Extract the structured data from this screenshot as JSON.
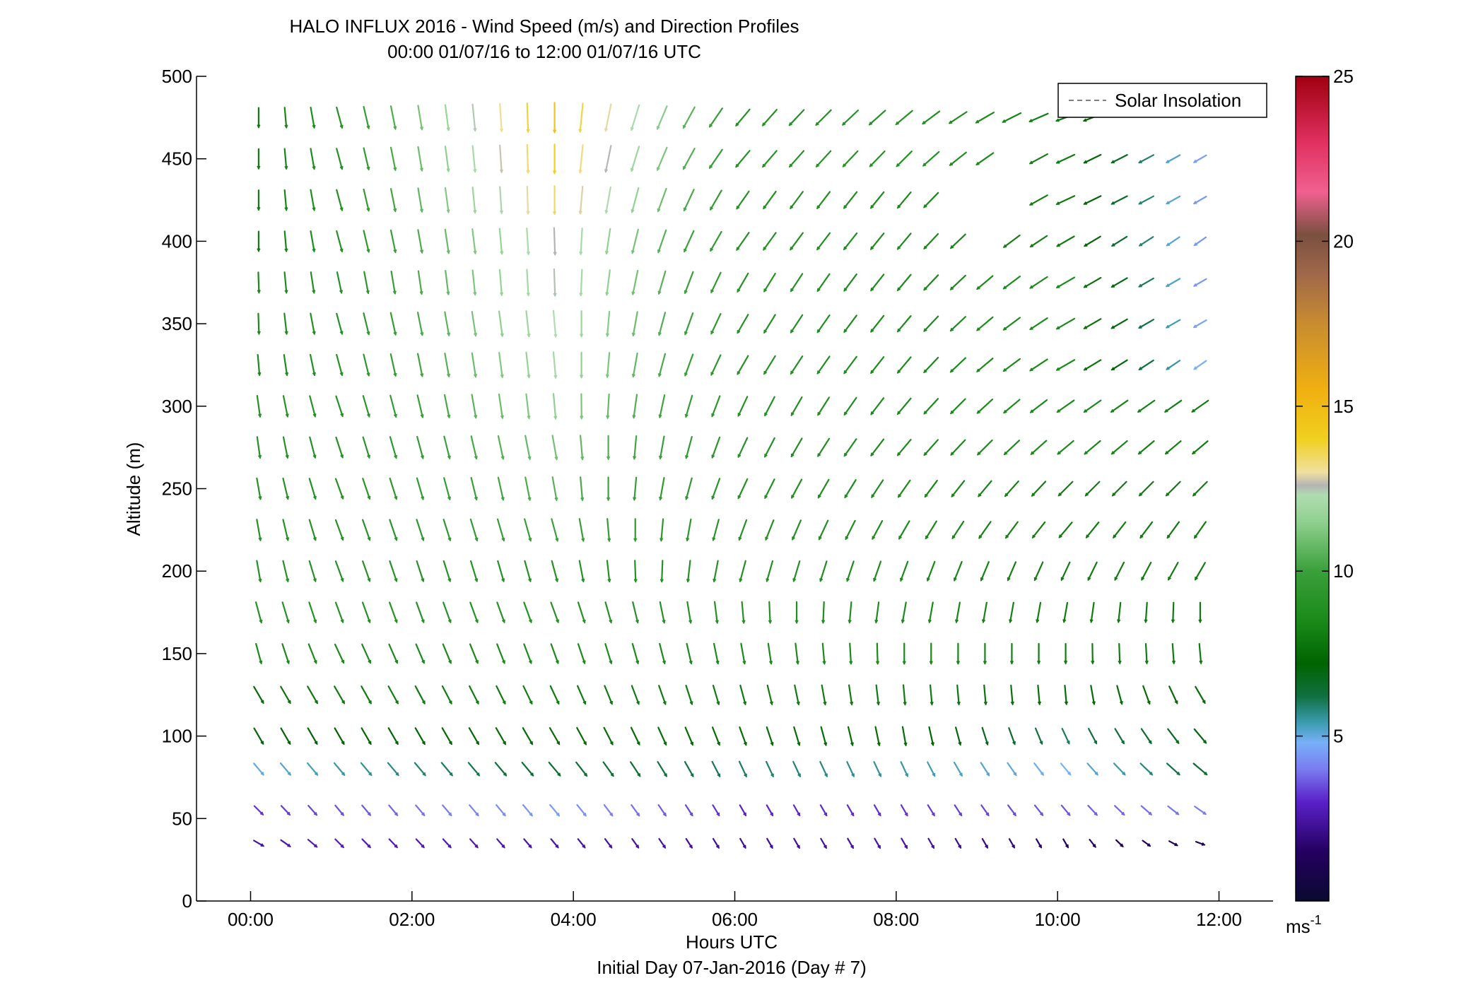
{
  "chart_data": {
    "type": "quiver",
    "title": "HALO INFLUX 2016 - Wind Speed (m/s) and Direction Profiles",
    "subtitle": "00:00 01/07/16 to 12:00 01/07/16  UTC",
    "xlabel": "Hours UTC",
    "xlabel2": "Initial Day 07-Jan-2016 (Day # 7)",
    "ylabel": "Altitude (m)",
    "xlim": [
      -0.67,
      12.67
    ],
    "ylim": [
      0,
      500
    ],
    "xticks": [
      0,
      2,
      4,
      6,
      8,
      10,
      12
    ],
    "xtick_labels": [
      "00:00",
      "02:00",
      "04:00",
      "06:00",
      "08:00",
      "10:00",
      "12:00"
    ],
    "yticks": [
      0,
      50,
      100,
      150,
      200,
      250,
      300,
      350,
      400,
      450,
      500
    ],
    "ytick_labels": [
      "0",
      "50",
      "100",
      "150",
      "200",
      "250",
      "300",
      "350",
      "400",
      "450",
      "500"
    ],
    "legend": {
      "label": "Solar Insolation",
      "placement": "top-right",
      "line_color": "#808080"
    },
    "colorbar": {
      "vmin": 0,
      "vmax": 25,
      "ticks": [
        5,
        10,
        15,
        20,
        25
      ],
      "tick_labels": [
        "5",
        "10",
        "15",
        "20",
        "25"
      ],
      "unit": "ms",
      "unit_exp": "-1",
      "stops": [
        {
          "v": 0,
          "c": "#0a0a30"
        },
        {
          "v": 1.5,
          "c": "#240060"
        },
        {
          "v": 3.0,
          "c": "#5a20c8"
        },
        {
          "v": 4.0,
          "c": "#7a7cf0"
        },
        {
          "v": 4.8,
          "c": "#78b0f8"
        },
        {
          "v": 5.4,
          "c": "#3c9cb0"
        },
        {
          "v": 6.2,
          "c": "#107040"
        },
        {
          "v": 7.2,
          "c": "#006400"
        },
        {
          "v": 8.5,
          "c": "#1a8a1a"
        },
        {
          "v": 10.0,
          "c": "#3aa03a"
        },
        {
          "v": 11.5,
          "c": "#90d090"
        },
        {
          "v": 12.3,
          "c": "#b0dcb0"
        },
        {
          "v": 12.6,
          "c": "#b4b4b4"
        },
        {
          "v": 13.0,
          "c": "#f0e0a0"
        },
        {
          "v": 14.0,
          "c": "#f0d020"
        },
        {
          "v": 15.5,
          "c": "#f0b010"
        },
        {
          "v": 17.5,
          "c": "#c88c30"
        },
        {
          "v": 19.0,
          "c": "#a0684a"
        },
        {
          "v": 20.2,
          "c": "#7a5040"
        },
        {
          "v": 21.5,
          "c": "#f06090"
        },
        {
          "v": 23.0,
          "c": "#e03060"
        },
        {
          "v": 25.0,
          "c": "#a00010"
        }
      ]
    },
    "times_hours": [
      0.1,
      0.433,
      0.767,
      1.1,
      1.433,
      1.767,
      2.1,
      2.433,
      2.767,
      3.1,
      3.433,
      3.767,
      4.1,
      4.433,
      4.767,
      5.1,
      5.433,
      5.767,
      6.1,
      6.433,
      6.767,
      7.1,
      7.433,
      7.767,
      8.1,
      8.433,
      8.767,
      9.1,
      9.433,
      9.767,
      10.1,
      10.433,
      10.767,
      11.1,
      11.433,
      11.767
    ],
    "altitudes_m": [
      35,
      55,
      80,
      100,
      125,
      150,
      175,
      200,
      225,
      250,
      275,
      300,
      325,
      350,
      375,
      400,
      425,
      450,
      475
    ],
    "profiles_by_time": "direction_deg = meteorological direction wind blows FROM (0=N, 90=E); speed_ms",
    "profiles": [
      {
        "t": 0.1,
        "dir": [
          300,
          315,
          320,
          330,
          330,
          345,
          345,
          350,
          350,
          350,
          352,
          352,
          355,
          358,
          358,
          0,
          0,
          0,
          0
        ],
        "spd": [
          2.5,
          3.2,
          5.0,
          7.0,
          7.5,
          8.5,
          9.0,
          9.0,
          9.0,
          9.0,
          9.0,
          9.0,
          8.5,
          8.5,
          8.5,
          8.0,
          8.0,
          8.0,
          8.0
        ]
      },
      {
        "t": 1.1,
        "dir": [
          315,
          320,
          320,
          330,
          330,
          335,
          340,
          340,
          340,
          340,
          342,
          342,
          345,
          345,
          348,
          345,
          345,
          345,
          345
        ],
        "spd": [
          2.8,
          3.5,
          5.5,
          7.2,
          8.0,
          8.5,
          9.0,
          9.0,
          9.0,
          9.0,
          9.0,
          9.0,
          9.0,
          9.0,
          9.0,
          9.0,
          9.0,
          9.0,
          9.0
        ]
      },
      {
        "t": 3.767,
        "dir": [
          320,
          320,
          320,
          330,
          335,
          340,
          340,
          345,
          345,
          350,
          350,
          355,
          355,
          355,
          358,
          358,
          360,
          360,
          360
        ],
        "spd": [
          2.5,
          4.5,
          6.5,
          7.5,
          8.0,
          8.5,
          9.0,
          9.0,
          10.0,
          10.5,
          11.0,
          11.5,
          12.0,
          12.3,
          12.5,
          12.6,
          13.5,
          14.0,
          14.5
        ]
      },
      {
        "t": 6.1,
        "dir": [
          330,
          330,
          335,
          340,
          345,
          350,
          355,
          15,
          20,
          25,
          25,
          25,
          30,
          30,
          30,
          35,
          35,
          40,
          40
        ],
        "spd": [
          2.2,
          3.0,
          6.0,
          7.5,
          8.0,
          8.5,
          9.0,
          9.0,
          9.0,
          9.0,
          9.0,
          9.0,
          9.0,
          9.0,
          9.0,
          9.0,
          9.0,
          9.0,
          9.0
        ]
      },
      {
        "t": 8.1,
        "dir": [
          330,
          330,
          335,
          350,
          355,
          0,
          10,
          20,
          30,
          35,
          40,
          40,
          40,
          40,
          40,
          40,
          40,
          45,
          50
        ],
        "spd": [
          2.5,
          3.2,
          5.5,
          7.5,
          8.0,
          8.5,
          8.5,
          8.5,
          8.5,
          8.5,
          8.5,
          8.5,
          8.5,
          8.5,
          8.5,
          8.5,
          8.5,
          9.0,
          9.0
        ]
      },
      {
        "t": 10.1,
        "dir": [
          330,
          320,
          320,
          335,
          355,
          0,
          10,
          25,
          40,
          45,
          50,
          55,
          60,
          60,
          60,
          60,
          65,
          65,
          70
        ],
        "spd": [
          1.5,
          3.6,
          4.8,
          6.0,
          7.5,
          8.0,
          8.0,
          8.0,
          8.0,
          8.0,
          8.5,
          8.5,
          8.5,
          8.5,
          8.5,
          8.0,
          8.0,
          8.0,
          8.0
        ]
      },
      {
        "t": 11.767,
        "dir": [
          290,
          305,
          310,
          320,
          330,
          355,
          0,
          30,
          35,
          45,
          50,
          55,
          55,
          60,
          60,
          55,
          60,
          60,
          65
        ],
        "spd": [
          1.2,
          4.0,
          6.5,
          7.0,
          7.5,
          8.0,
          8.0,
          8.0,
          8.0,
          8.0,
          8.0,
          8.0,
          4.8,
          4.6,
          4.4,
          4.4,
          4.4,
          4.5,
          4.5
        ]
      }
    ],
    "missing": [
      {
        "alt": 450,
        "t_from": 9.3,
        "t_to": 9.6
      },
      {
        "alt": 425,
        "t_from": 8.6,
        "t_to": 9.6
      },
      {
        "alt": 400,
        "t_from": 8.9,
        "t_to": 9.2
      },
      {
        "alt": 475,
        "t_from": 10.5,
        "t_to": 12.0
      }
    ]
  }
}
